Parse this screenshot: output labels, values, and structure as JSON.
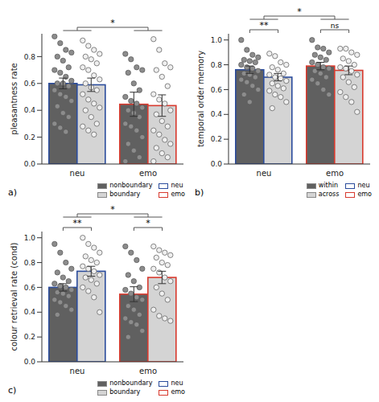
{
  "chart_data": [
    {
      "type": "bar",
      "label": "a)",
      "y_label": "pleasantness rate",
      "categories": [
        "neu",
        "emo"
      ],
      "ylim": [
        0,
        0.97
      ],
      "yticks": [
        {
          "value": 0,
          "label": "0.0"
        },
        0.2,
        0.4,
        0.6,
        0.8
      ],
      "groups": [
        {
          "name": "neu",
          "color": "#2b4c9c"
        },
        {
          "name": "emo",
          "color": "#d83a2e"
        }
      ],
      "series": [
        {
          "name": "nonboundary",
          "color": "#606060",
          "values": [
            0.6,
            0.445
          ],
          "errors": [
            0.04,
            0.09
          ],
          "points": [
            [
              0.95,
              0.9,
              0.85,
              0.83,
              0.8,
              0.77,
              0.72,
              0.7,
              0.68,
              0.65,
              0.62,
              0.6,
              0.6,
              0.58,
              0.55,
              0.52,
              0.5,
              0.47,
              0.43,
              0.38,
              0.35,
              0.3,
              0.27,
              0.24
            ],
            [
              0.82,
              0.78,
              0.72,
              0.7,
              0.68,
              0.6,
              0.55,
              0.5,
              0.47,
              0.45,
              0.42,
              0.4,
              0.38,
              0.35,
              0.3,
              0.28,
              0.25,
              0.2,
              0.15,
              0.1,
              0.05,
              0.02
            ]
          ]
        },
        {
          "name": "boundary",
          "color": "#d4d4d4",
          "values": [
            0.59,
            0.435
          ],
          "errors": [
            0.05,
            0.08
          ],
          "points": [
            [
              0.92,
              0.88,
              0.85,
              0.82,
              0.8,
              0.78,
              0.75,
              0.72,
              0.7,
              0.66,
              0.63,
              0.6,
              0.57,
              0.55,
              0.52,
              0.48,
              0.45,
              0.42,
              0.4,
              0.35,
              0.3,
              0.28,
              0.25,
              0.22
            ],
            [
              0.93,
              0.85,
              0.75,
              0.72,
              0.7,
              0.65,
              0.58,
              0.52,
              0.48,
              0.45,
              0.4,
              0.37,
              0.32,
              0.28,
              0.25,
              0.22,
              0.18,
              0.15,
              0.12,
              0.08,
              0.05,
              0.02
            ]
          ]
        }
      ],
      "annotations": [
        {
          "text": "*",
          "between": [
            "neu",
            "emo"
          ]
        }
      ]
    },
    {
      "type": "bar",
      "label": "b)",
      "y_label": "temporal order memory",
      "categories": [
        "neu",
        "emo"
      ],
      "ylim": [
        0,
        1.05
      ],
      "yticks": [
        {
          "value": 0,
          "label": "0.0"
        },
        0.2,
        0.4,
        0.6,
        0.8,
        {
          "value": 1,
          "label": "1.0"
        }
      ],
      "groups": [
        {
          "name": "neu",
          "color": "#2b4c9c"
        },
        {
          "name": "emo",
          "color": "#d83a2e"
        }
      ],
      "series": [
        {
          "name": "within",
          "color": "#606060",
          "values": [
            0.76,
            0.79
          ],
          "errors": [
            0.03,
            0.03
          ],
          "points": [
            [
              1.0,
              0.92,
              0.88,
              0.86,
              0.84,
              0.83,
              0.82,
              0.8,
              0.78,
              0.77,
              0.75,
              0.73,
              0.72,
              0.7,
              0.68,
              0.66,
              0.63,
              0.6,
              0.56,
              0.5
            ],
            [
              1.0,
              0.94,
              0.93,
              0.9,
              0.88,
              0.86,
              0.84,
              0.82,
              0.8,
              0.78,
              0.77,
              0.75,
              0.73,
              0.7,
              0.68,
              0.65,
              0.6,
              0.56
            ]
          ]
        },
        {
          "name": "across",
          "color": "#d4d4d4",
          "values": [
            0.7,
            0.755
          ],
          "errors": [
            0.03,
            0.035
          ],
          "points": [
            [
              0.89,
              0.87,
              0.82,
              0.8,
              0.78,
              0.76,
              0.73,
              0.72,
              0.7,
              0.69,
              0.67,
              0.65,
              0.63,
              0.61,
              0.59,
              0.56,
              0.54,
              0.5,
              0.45
            ],
            [
              0.93,
              0.93,
              0.9,
              0.88,
              0.85,
              0.83,
              0.8,
              0.78,
              0.77,
              0.75,
              0.72,
              0.7,
              0.66,
              0.62,
              0.58,
              0.54,
              0.5,
              0.42
            ]
          ]
        }
      ],
      "annotations": [
        {
          "text": "**",
          "within": "neu"
        },
        {
          "text": "ns",
          "within": "emo"
        },
        {
          "text": "*",
          "between": [
            "neu",
            "emo"
          ]
        }
      ]
    },
    {
      "type": "bar",
      "label": "c)",
      "y_label": "colour retrieval rate (cond)",
      "categories": [
        "neu",
        "emo"
      ],
      "ylim": [
        0,
        1.05
      ],
      "yticks": [
        {
          "value": 0,
          "label": "0.0"
        },
        0.2,
        0.4,
        0.6,
        0.8,
        {
          "value": 1,
          "label": "1.0"
        }
      ],
      "groups": [
        {
          "name": "neu",
          "color": "#2b4c9c"
        },
        {
          "name": "emo",
          "color": "#d83a2e"
        }
      ],
      "series": [
        {
          "name": "nonboundary",
          "color": "#606060",
          "values": [
            0.6,
            0.545
          ],
          "errors": [
            0.03,
            0.06
          ],
          "points": [
            [
              0.95,
              0.88,
              0.8,
              0.75,
              0.72,
              0.68,
              0.65,
              0.63,
              0.61,
              0.6,
              0.58,
              0.56,
              0.55,
              0.53,
              0.5,
              0.48,
              0.45,
              0.42,
              0.38
            ],
            [
              0.93,
              0.88,
              0.82,
              0.75,
              0.7,
              0.65,
              0.6,
              0.58,
              0.55,
              0.52,
              0.5,
              0.45,
              0.42,
              0.38,
              0.35,
              0.32,
              0.3,
              0.25,
              0.2
            ]
          ]
        },
        {
          "name": "boundary",
          "color": "#d4d4d4",
          "values": [
            0.73,
            0.68
          ],
          "errors": [
            0.04,
            0.05
          ],
          "points": [
            [
              1.0,
              0.95,
              0.92,
              0.88,
              0.85,
              0.82,
              0.8,
              0.77,
              0.75,
              0.73,
              0.7,
              0.68,
              0.66,
              0.63,
              0.6,
              0.57,
              0.52,
              0.4
            ],
            [
              0.93,
              0.9,
              0.88,
              0.86,
              0.84,
              0.8,
              0.78,
              0.75,
              0.72,
              0.68,
              0.65,
              0.6,
              0.55,
              0.5,
              0.42,
              0.37,
              0.35,
              0.33
            ]
          ]
        }
      ],
      "annotations": [
        {
          "text": "**",
          "within": "neu"
        },
        {
          "text": "*",
          "within": "emo"
        },
        {
          "text": "*",
          "between": [
            "neu",
            "emo"
          ]
        }
      ]
    }
  ]
}
